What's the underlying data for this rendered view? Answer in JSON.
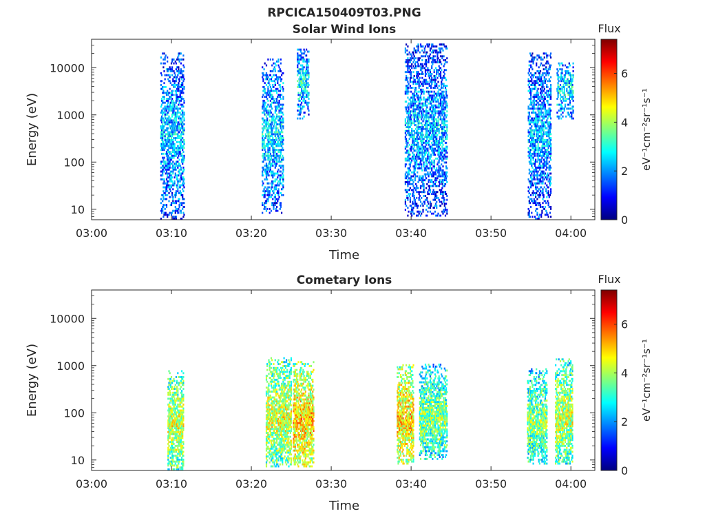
{
  "figure": {
    "title": "RPCICA150409T03.PNG"
  },
  "colorbar": {
    "title": "Flux",
    "label": "eV⁻¹cm⁻²sr⁻¹s⁻¹",
    "ticks": [
      "0",
      "2",
      "4",
      "6"
    ],
    "range": [
      0,
      7.4
    ],
    "stops": [
      "#00007f",
      "#0000ff",
      "#007fff",
      "#00ffff",
      "#7fff7f",
      "#ffff00",
      "#ff7f00",
      "#ff0000",
      "#7f0000"
    ]
  },
  "chart_data": [
    {
      "type": "heatmap",
      "title": "Solar Wind Ions",
      "xlabel": "Time",
      "ylabel": "Energy (eV)",
      "x_ticks": [
        "03:00",
        "03:10",
        "03:20",
        "03:30",
        "03:40",
        "03:50",
        "04:00"
      ],
      "y_ticks": [
        "10",
        "100",
        "1000",
        "10000"
      ],
      "y_scale": "log",
      "xlim_minutes": [
        0,
        63
      ],
      "ylim": [
        6,
        40000
      ],
      "clusters": [
        {
          "t_start": 8.6,
          "t_end": 11.6,
          "e_min": 6,
          "e_max": 20000,
          "flux_mean": 2.4
        },
        {
          "t_start": 21.3,
          "t_end": 24.0,
          "e_min": 8,
          "e_max": 15000,
          "flux_mean": 2.6
        },
        {
          "t_start": 25.7,
          "t_end": 27.2,
          "e_min": 800,
          "e_max": 25000,
          "flux_mean": 2.8
        },
        {
          "t_start": 39.2,
          "t_end": 44.5,
          "e_min": 7,
          "e_max": 30000,
          "flux_mean": 2.3
        },
        {
          "t_start": 54.6,
          "t_end": 57.5,
          "e_min": 6,
          "e_max": 20000,
          "flux_mean": 2.3
        },
        {
          "t_start": 58.2,
          "t_end": 60.3,
          "e_min": 800,
          "e_max": 12000,
          "flux_mean": 2.8
        }
      ]
    },
    {
      "type": "heatmap",
      "title": "Cometary Ions",
      "xlabel": "Time",
      "ylabel": "Energy (eV)",
      "x_ticks": [
        "03:00",
        "03:10",
        "03:20",
        "03:30",
        "03:40",
        "03:50",
        "04:00"
      ],
      "y_ticks": [
        "10",
        "100",
        "1000",
        "10000"
      ],
      "y_scale": "log",
      "xlim_minutes": [
        0,
        63
      ],
      "ylim": [
        6,
        40000
      ],
      "clusters": [
        {
          "t_start": 9.5,
          "t_end": 11.5,
          "e_min": 6,
          "e_max": 800,
          "flux_mean": 4.3
        },
        {
          "t_start": 21.8,
          "t_end": 25.0,
          "e_min": 7,
          "e_max": 1500,
          "flux_mean": 4.4
        },
        {
          "t_start": 25.2,
          "t_end": 27.8,
          "e_min": 7,
          "e_max": 1200,
          "flux_mean": 5.0
        },
        {
          "t_start": 38.2,
          "t_end": 40.3,
          "e_min": 8,
          "e_max": 1000,
          "flux_mean": 5.0
        },
        {
          "t_start": 41.0,
          "t_end": 44.5,
          "e_min": 10,
          "e_max": 1000,
          "flux_mean": 3.8
        },
        {
          "t_start": 54.5,
          "t_end": 57.0,
          "e_min": 8,
          "e_max": 800,
          "flux_mean": 3.8
        },
        {
          "t_start": 58.0,
          "t_end": 60.2,
          "e_min": 8,
          "e_max": 1300,
          "flux_mean": 4.2
        }
      ]
    }
  ]
}
